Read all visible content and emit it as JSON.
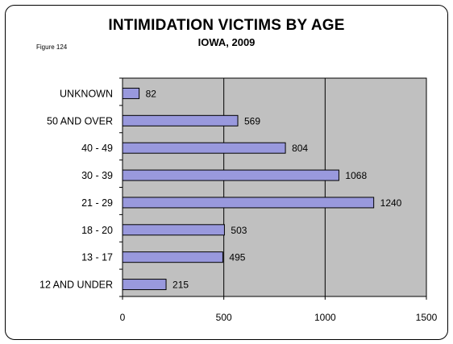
{
  "figure_label": "Figure 124",
  "chart_data": {
    "type": "bar",
    "orientation": "horizontal",
    "title": "INTIMIDATION VICTIMS BY AGE",
    "subtitle": "IOWA, 2009",
    "categories": [
      "UNKNOWN",
      "50 AND OVER",
      "40 - 49",
      "30 - 39",
      "21 - 29",
      "18 - 20",
      "13 - 17",
      "12 AND UNDER"
    ],
    "values": [
      82,
      569,
      804,
      1068,
      1240,
      503,
      495,
      215
    ],
    "xlim": [
      0,
      1500
    ],
    "xticks": [
      0,
      500,
      1000,
      1500
    ],
    "grid": "vertical",
    "legend": "none",
    "colors": {
      "bar": "#9999dd",
      "plot_bg": "#c0c0c0",
      "bar_border": "#000000"
    }
  }
}
